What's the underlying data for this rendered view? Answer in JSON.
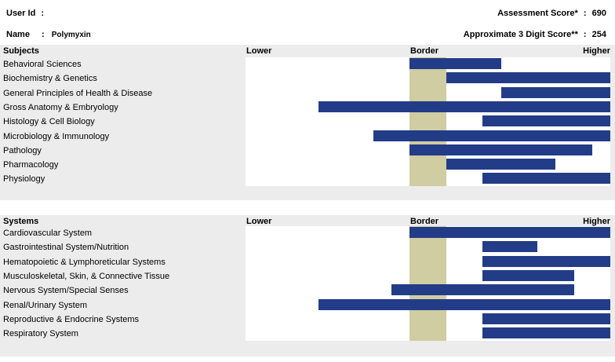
{
  "header": {
    "user_id_label": "User Id",
    "user_id_sep": ":",
    "name_label": "Name",
    "name_sep": ":",
    "name_value": "Polymyxin",
    "assessment_label": "Assessment Score*",
    "assessment_sep": ":",
    "assessment_value": "690",
    "approx_label": "Approximate 3 Digit Score**",
    "approx_sep": ":",
    "approx_value": "254"
  },
  "columns": {
    "lower": "Lower",
    "border": "Border",
    "higher": "Higher"
  },
  "subjects": {
    "title": "Subjects",
    "rows": [
      {
        "label": "Behavioral Sciences",
        "start": 0.45,
        "end": 0.7
      },
      {
        "label": "Biochemistry & Genetics",
        "start": 0.55,
        "end": 1.0
      },
      {
        "label": "General Principles of Health & Disease",
        "start": 0.7,
        "end": 1.0
      },
      {
        "label": "Gross Anatomy & Embryology",
        "start": 0.2,
        "end": 1.0
      },
      {
        "label": "Histology & Cell Biology",
        "start": 0.65,
        "end": 1.0
      },
      {
        "label": "Microbiology & Immunology",
        "start": 0.35,
        "end": 1.0
      },
      {
        "label": "Pathology",
        "start": 0.45,
        "end": 0.95
      },
      {
        "label": "Pharmacology",
        "start": 0.55,
        "end": 0.85
      },
      {
        "label": "Physiology",
        "start": 0.65,
        "end": 1.0
      }
    ]
  },
  "systems": {
    "title": "Systems",
    "rows": [
      {
        "label": "Cardiovascular System",
        "start": 0.45,
        "end": 1.0
      },
      {
        "label": "Gastrointestinal System/Nutrition",
        "start": 0.65,
        "end": 0.8
      },
      {
        "label": "Hematopoietic & Lymphoreticular Systems",
        "start": 0.65,
        "end": 1.0
      },
      {
        "label": "Musculoskeletal, Skin, & Connective Tissue",
        "start": 0.65,
        "end": 0.9
      },
      {
        "label": "Nervous System/Special Senses",
        "start": 0.4,
        "end": 0.9
      },
      {
        "label": "Renal/Urinary System",
        "start": 0.2,
        "end": 1.0
      },
      {
        "label": "Reproductive & Endocrine Systems",
        "start": 0.65,
        "end": 1.0
      },
      {
        "label": "Respiratory System",
        "start": 0.65,
        "end": 1.0
      }
    ]
  },
  "border_band": {
    "start": 0.45,
    "end": 0.55
  },
  "colors": {
    "bar": "#233c87",
    "border_band": "#cfcda1",
    "section_background": "#ececec"
  }
}
